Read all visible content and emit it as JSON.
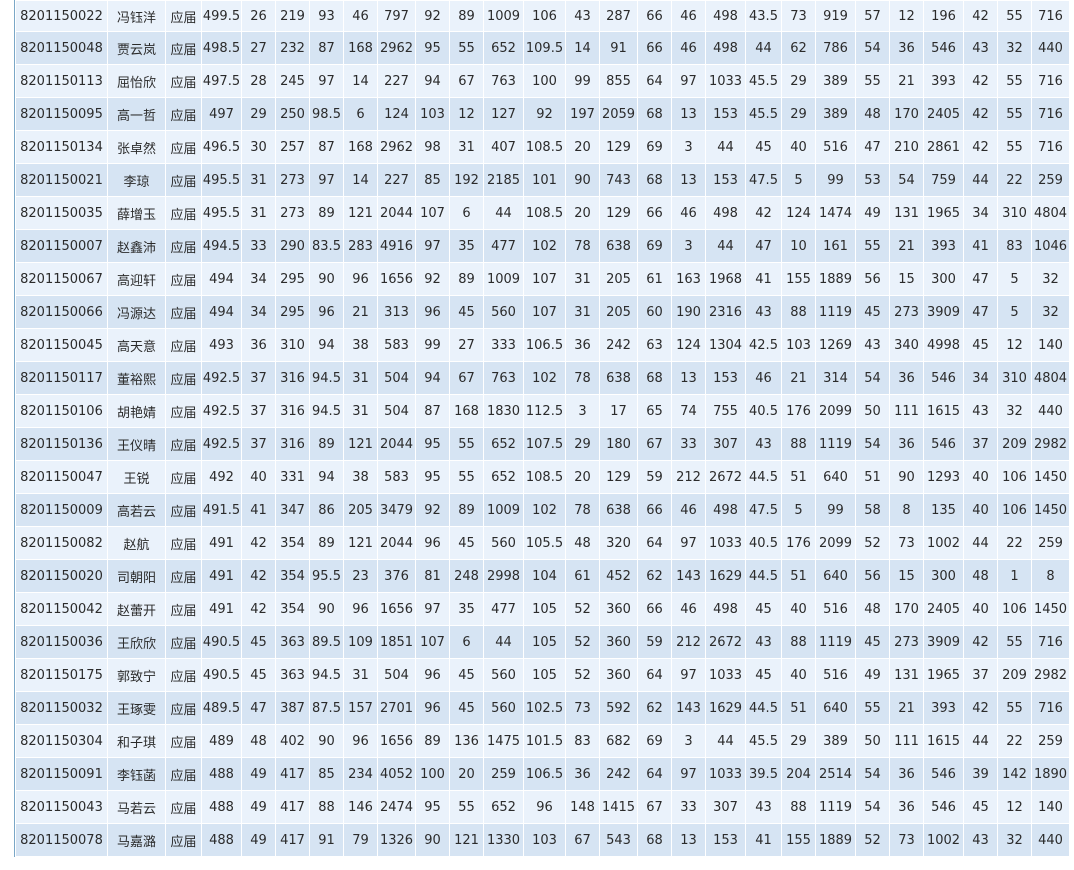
{
  "table": {
    "rows": [
      [
        "8201150022",
        "冯钰洋",
        "应届",
        "499.5",
        "26",
        "219",
        "93",
        "46",
        "797",
        "92",
        "89",
        "1009",
        "106",
        "43",
        "287",
        "66",
        "46",
        "498",
        "43.5",
        "73",
        "919",
        "57",
        "12",
        "196",
        "42",
        "55",
        "716"
      ],
      [
        "8201150048",
        "贾云岚",
        "应届",
        "498.5",
        "27",
        "232",
        "87",
        "168",
        "2962",
        "95",
        "55",
        "652",
        "109.5",
        "14",
        "91",
        "66",
        "46",
        "498",
        "44",
        "62",
        "786",
        "54",
        "36",
        "546",
        "43",
        "32",
        "440"
      ],
      [
        "8201150113",
        "屈怡欣",
        "应届",
        "497.5",
        "28",
        "245",
        "97",
        "14",
        "227",
        "94",
        "67",
        "763",
        "100",
        "99",
        "855",
        "64",
        "97",
        "1033",
        "45.5",
        "29",
        "389",
        "55",
        "21",
        "393",
        "42",
        "55",
        "716"
      ],
      [
        "8201150095",
        "高一哲",
        "应届",
        "497",
        "29",
        "250",
        "98.5",
        "6",
        "124",
        "103",
        "12",
        "127",
        "92",
        "197",
        "2059",
        "68",
        "13",
        "153",
        "45.5",
        "29",
        "389",
        "48",
        "170",
        "2405",
        "42",
        "55",
        "716"
      ],
      [
        "8201150134",
        "张卓然",
        "应届",
        "496.5",
        "30",
        "257",
        "87",
        "168",
        "2962",
        "98",
        "31",
        "407",
        "108.5",
        "20",
        "129",
        "69",
        "3",
        "44",
        "45",
        "40",
        "516",
        "47",
        "210",
        "2861",
        "42",
        "55",
        "716"
      ],
      [
        "8201150021",
        "李琼",
        "应届",
        "495.5",
        "31",
        "273",
        "97",
        "14",
        "227",
        "85",
        "192",
        "2185",
        "101",
        "90",
        "743",
        "68",
        "13",
        "153",
        "47.5",
        "5",
        "99",
        "53",
        "54",
        "759",
        "44",
        "22",
        "259"
      ],
      [
        "8201150035",
        "薛增玉",
        "应届",
        "495.5",
        "31",
        "273",
        "89",
        "121",
        "2044",
        "107",
        "6",
        "44",
        "108.5",
        "20",
        "129",
        "66",
        "46",
        "498",
        "42",
        "124",
        "1474",
        "49",
        "131",
        "1965",
        "34",
        "310",
        "4804"
      ],
      [
        "8201150007",
        "赵鑫沛",
        "应届",
        "494.5",
        "33",
        "290",
        "83.5",
        "283",
        "4916",
        "97",
        "35",
        "477",
        "102",
        "78",
        "638",
        "69",
        "3",
        "44",
        "47",
        "10",
        "161",
        "55",
        "21",
        "393",
        "41",
        "83",
        "1046"
      ],
      [
        "8201150067",
        "高迎轩",
        "应届",
        "494",
        "34",
        "295",
        "90",
        "96",
        "1656",
        "92",
        "89",
        "1009",
        "107",
        "31",
        "205",
        "61",
        "163",
        "1968",
        "41",
        "155",
        "1889",
        "56",
        "15",
        "300",
        "47",
        "5",
        "32"
      ],
      [
        "8201150066",
        "冯源达",
        "应届",
        "494",
        "34",
        "295",
        "96",
        "21",
        "313",
        "96",
        "45",
        "560",
        "107",
        "31",
        "205",
        "60",
        "190",
        "2316",
        "43",
        "88",
        "1119",
        "45",
        "273",
        "3909",
        "47",
        "5",
        "32"
      ],
      [
        "8201150045",
        "高天意",
        "应届",
        "493",
        "36",
        "310",
        "94",
        "38",
        "583",
        "99",
        "27",
        "333",
        "106.5",
        "36",
        "242",
        "63",
        "124",
        "1304",
        "42.5",
        "103",
        "1269",
        "43",
        "340",
        "4998",
        "45",
        "12",
        "140"
      ],
      [
        "8201150117",
        "董裕熙",
        "应届",
        "492.5",
        "37",
        "316",
        "94.5",
        "31",
        "504",
        "94",
        "67",
        "763",
        "102",
        "78",
        "638",
        "68",
        "13",
        "153",
        "46",
        "21",
        "314",
        "54",
        "36",
        "546",
        "34",
        "310",
        "4804"
      ],
      [
        "8201150106",
        "胡艳婧",
        "应届",
        "492.5",
        "37",
        "316",
        "94.5",
        "31",
        "504",
        "87",
        "168",
        "1830",
        "112.5",
        "3",
        "17",
        "65",
        "74",
        "755",
        "40.5",
        "176",
        "2099",
        "50",
        "111",
        "1615",
        "43",
        "32",
        "440"
      ],
      [
        "8201150136",
        "王仪晴",
        "应届",
        "492.5",
        "37",
        "316",
        "89",
        "121",
        "2044",
        "95",
        "55",
        "652",
        "107.5",
        "29",
        "180",
        "67",
        "33",
        "307",
        "43",
        "88",
        "1119",
        "54",
        "36",
        "546",
        "37",
        "209",
        "2982"
      ],
      [
        "8201150047",
        "王锐",
        "应届",
        "492",
        "40",
        "331",
        "94",
        "38",
        "583",
        "95",
        "55",
        "652",
        "108.5",
        "20",
        "129",
        "59",
        "212",
        "2672",
        "44.5",
        "51",
        "640",
        "51",
        "90",
        "1293",
        "40",
        "106",
        "1450"
      ],
      [
        "8201150009",
        "高若云",
        "应届",
        "491.5",
        "41",
        "347",
        "86",
        "205",
        "3479",
        "92",
        "89",
        "1009",
        "102",
        "78",
        "638",
        "66",
        "46",
        "498",
        "47.5",
        "5",
        "99",
        "58",
        "8",
        "135",
        "40",
        "106",
        "1450"
      ],
      [
        "8201150082",
        "赵航",
        "应届",
        "491",
        "42",
        "354",
        "89",
        "121",
        "2044",
        "96",
        "45",
        "560",
        "105.5",
        "48",
        "320",
        "64",
        "97",
        "1033",
        "40.5",
        "176",
        "2099",
        "52",
        "73",
        "1002",
        "44",
        "22",
        "259"
      ],
      [
        "8201150020",
        "司朝阳",
        "应届",
        "491",
        "42",
        "354",
        "95.5",
        "23",
        "376",
        "81",
        "248",
        "2998",
        "104",
        "61",
        "452",
        "62",
        "143",
        "1629",
        "44.5",
        "51",
        "640",
        "56",
        "15",
        "300",
        "48",
        "1",
        "8"
      ],
      [
        "8201150042",
        "赵蕾开",
        "应届",
        "491",
        "42",
        "354",
        "90",
        "96",
        "1656",
        "97",
        "35",
        "477",
        "105",
        "52",
        "360",
        "66",
        "46",
        "498",
        "45",
        "40",
        "516",
        "48",
        "170",
        "2405",
        "40",
        "106",
        "1450"
      ],
      [
        "8201150036",
        "王欣欣",
        "应届",
        "490.5",
        "45",
        "363",
        "89.5",
        "109",
        "1851",
        "107",
        "6",
        "44",
        "105",
        "52",
        "360",
        "59",
        "212",
        "2672",
        "43",
        "88",
        "1119",
        "45",
        "273",
        "3909",
        "42",
        "55",
        "716"
      ],
      [
        "8201150175",
        "郭致宁",
        "应届",
        "490.5",
        "45",
        "363",
        "94.5",
        "31",
        "504",
        "96",
        "45",
        "560",
        "105",
        "52",
        "360",
        "64",
        "97",
        "1033",
        "45",
        "40",
        "516",
        "49",
        "131",
        "1965",
        "37",
        "209",
        "2982"
      ],
      [
        "8201150032",
        "王琢雯",
        "应届",
        "489.5",
        "47",
        "387",
        "87.5",
        "157",
        "2701",
        "96",
        "45",
        "560",
        "102.5",
        "73",
        "592",
        "62",
        "143",
        "1629",
        "44.5",
        "51",
        "640",
        "55",
        "21",
        "393",
        "42",
        "55",
        "716"
      ],
      [
        "8201150304",
        "和子琪",
        "应届",
        "489",
        "48",
        "402",
        "90",
        "96",
        "1656",
        "89",
        "136",
        "1475",
        "101.5",
        "83",
        "682",
        "69",
        "3",
        "44",
        "45.5",
        "29",
        "389",
        "50",
        "111",
        "1615",
        "44",
        "22",
        "259"
      ],
      [
        "8201150091",
        "李钰菡",
        "应届",
        "488",
        "49",
        "417",
        "85",
        "234",
        "4052",
        "100",
        "20",
        "259",
        "106.5",
        "36",
        "242",
        "64",
        "97",
        "1033",
        "39.5",
        "204",
        "2514",
        "54",
        "36",
        "546",
        "39",
        "142",
        "1890"
      ],
      [
        "8201150043",
        "马若云",
        "应届",
        "488",
        "49",
        "417",
        "88",
        "146",
        "2474",
        "95",
        "55",
        "652",
        "96",
        "148",
        "1415",
        "67",
        "33",
        "307",
        "43",
        "88",
        "1119",
        "54",
        "36",
        "546",
        "45",
        "12",
        "140"
      ],
      [
        "8201150078",
        "马嘉潞",
        "应届",
        "488",
        "49",
        "417",
        "91",
        "79",
        "1326",
        "90",
        "121",
        "1330",
        "103",
        "67",
        "543",
        "68",
        "13",
        "153",
        "41",
        "155",
        "1889",
        "52",
        "73",
        "1002",
        "43",
        "32",
        "440"
      ]
    ]
  }
}
